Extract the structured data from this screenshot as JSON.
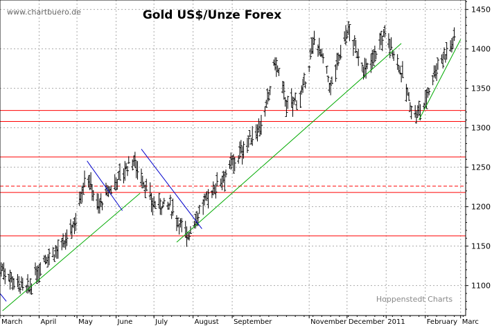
{
  "header": {
    "title": "Gold US$/Unze Forex",
    "watermark": "www.chartbuero.de",
    "credit": "Hoppenstedt Charts"
  },
  "chart_data": {
    "type": "ohlc",
    "title": "Gold US$/Unze Forex",
    "xlabel": "",
    "ylabel": "",
    "grid": true,
    "ylim": [
      1062,
      1462
    ],
    "x_range_days": [
      0,
      369
    ],
    "y_ticks": [
      1100,
      1150,
      1200,
      1250,
      1300,
      1350,
      1400,
      1450
    ],
    "x_ticks": [
      {
        "label": "March",
        "day": 0
      },
      {
        "label": "April",
        "day": 31
      },
      {
        "label": "May",
        "day": 61
      },
      {
        "label": "June",
        "day": 92
      },
      {
        "label": "July",
        "day": 122
      },
      {
        "label": "August",
        "day": 153
      },
      {
        "label": "September",
        "day": 184
      },
      {
        "label": "November",
        "day": 245
      },
      {
        "label": "December",
        "day": 275
      },
      {
        "label": "2011",
        "day": 306
      },
      {
        "label": "February",
        "day": 337
      },
      {
        "label": "Marc",
        "day": 365
      }
    ],
    "trend_key_points": [
      [
        0,
        1125
      ],
      [
        10,
        1108
      ],
      [
        22,
        1092
      ],
      [
        35,
        1135
      ],
      [
        50,
        1148
      ],
      [
        60,
        1185
      ],
      [
        68,
        1245
      ],
      [
        78,
        1200
      ],
      [
        90,
        1228
      ],
      [
        105,
        1260
      ],
      [
        110,
        1248
      ],
      [
        120,
        1205
      ],
      [
        135,
        1200
      ],
      [
        148,
        1162
      ],
      [
        155,
        1185
      ],
      [
        170,
        1225
      ],
      [
        185,
        1255
      ],
      [
        200,
        1290
      ],
      [
        210,
        1315
      ],
      [
        218,
        1385
      ],
      [
        228,
        1325
      ],
      [
        240,
        1345
      ],
      [
        250,
        1418
      ],
      [
        262,
        1350
      ],
      [
        275,
        1425
      ],
      [
        290,
        1370
      ],
      [
        305,
        1420
      ],
      [
        315,
        1385
      ],
      [
        328,
        1315
      ],
      [
        335,
        1325
      ],
      [
        345,
        1375
      ],
      [
        360,
        1412
      ]
    ],
    "horizontal_lines": [
      {
        "value": 1163,
        "style": "solid",
        "color": "#ff0000"
      },
      {
        "value": 1218,
        "style": "solid",
        "color": "#ff0000"
      },
      {
        "value": 1226,
        "style": "dashed",
        "color": "#ff0000"
      },
      {
        "value": 1263,
        "style": "solid",
        "color": "#ff0000"
      },
      {
        "value": 1308,
        "style": "solid",
        "color": "#ff0000"
      },
      {
        "value": 1322,
        "style": "solid",
        "color": "#ff0000"
      }
    ],
    "trendlines": [
      {
        "color": "#00aa00",
        "points": [
          [
            2,
            1068
          ],
          [
            111,
            1217
          ]
        ]
      },
      {
        "color": "#00aa00",
        "points": [
          [
            140,
            1155
          ],
          [
            318,
            1407
          ]
        ]
      },
      {
        "color": "#00aa00",
        "points": [
          [
            332,
            1310
          ],
          [
            365,
            1412
          ]
        ]
      },
      {
        "color": "#0000cc",
        "points": [
          [
            69,
            1258
          ],
          [
            97,
            1195
          ]
        ]
      },
      {
        "color": "#0000cc",
        "points": [
          [
            112,
            1273
          ],
          [
            160,
            1172
          ]
        ]
      },
      {
        "color": "#0000cc",
        "points": [
          [
            0,
            1090
          ],
          [
            5,
            1080
          ]
        ]
      }
    ],
    "colors": {
      "bars": "#000000",
      "grid": "#aaaaaa",
      "support": "#ff0000",
      "trend_up": "#00aa00",
      "trend_down": "#0000cc"
    }
  }
}
